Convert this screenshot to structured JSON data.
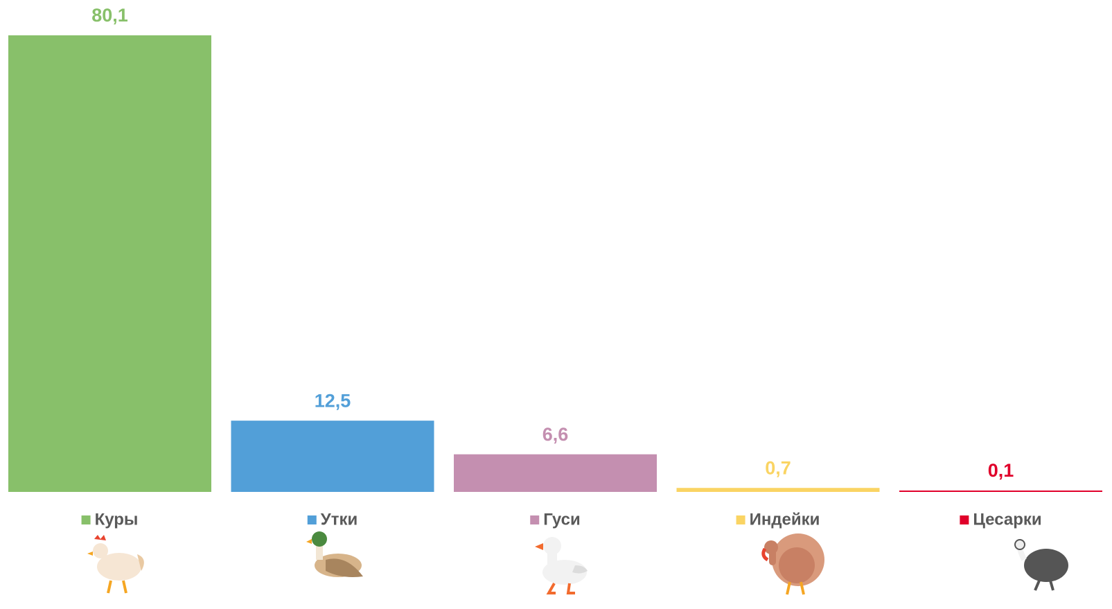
{
  "chart_data": {
    "type": "bar",
    "categories": [
      "Куры",
      "Утки",
      "Гуси",
      "Индейки",
      "Цесарки"
    ],
    "values": [
      80.1,
      12.5,
      6.6,
      0.7,
      0.1
    ],
    "value_labels": [
      "80,1",
      "12,5",
      "6,6",
      "0,7",
      "0,1"
    ],
    "colors": [
      "#88c06a",
      "#529fd8",
      "#c48fb0",
      "#fad463",
      "#e0002a"
    ],
    "legend": "bottom"
  }
}
